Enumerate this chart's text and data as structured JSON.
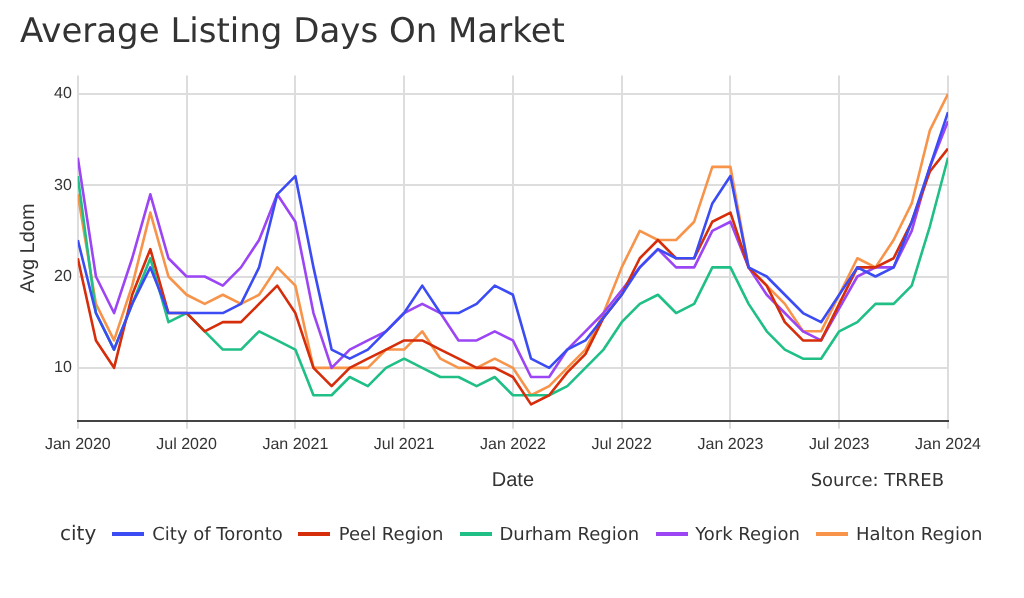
{
  "chart_data": {
    "type": "line",
    "title": "Average Listing Days On Market",
    "xlabel": "Date",
    "ylabel": "Avg Ldom",
    "legend_title": "city",
    "annotations": [
      "Source: TRREB"
    ],
    "x": [
      "2020-01",
      "2020-02",
      "2020-03",
      "2020-04",
      "2020-05",
      "2020-06",
      "2020-07",
      "2020-08",
      "2020-09",
      "2020-10",
      "2020-11",
      "2020-12",
      "2021-01",
      "2021-02",
      "2021-03",
      "2021-04",
      "2021-05",
      "2021-06",
      "2021-07",
      "2021-08",
      "2021-09",
      "2021-10",
      "2021-11",
      "2021-12",
      "2022-01",
      "2022-02",
      "2022-03",
      "2022-04",
      "2022-05",
      "2022-06",
      "2022-07",
      "2022-08",
      "2022-09",
      "2022-10",
      "2022-11",
      "2022-12",
      "2023-01",
      "2023-02",
      "2023-03",
      "2023-04",
      "2023-05",
      "2023-06",
      "2023-07",
      "2023-08",
      "2023-09",
      "2023-10",
      "2023-11",
      "2023-12",
      "2024-01"
    ],
    "series": [
      {
        "name": "City of Toronto",
        "color": "#3b4cf5",
        "values": [
          24,
          16,
          12,
          17,
          21,
          16,
          16,
          16,
          16,
          17,
          21,
          29,
          31,
          21,
          12,
          11,
          12,
          14,
          16,
          19,
          16,
          16,
          17,
          19,
          18,
          11,
          10,
          12,
          13,
          15.5,
          18,
          21,
          23,
          22,
          22,
          28,
          31,
          21,
          20,
          18,
          16,
          15,
          18,
          21,
          20,
          21,
          26,
          32,
          38
        ]
      },
      {
        "name": "Peel Region",
        "color": "#d62d0a",
        "values": [
          22,
          13,
          10,
          18,
          23,
          16,
          16,
          14,
          15,
          15,
          17,
          19,
          16,
          10,
          8,
          10,
          11,
          12,
          13,
          13,
          12,
          11,
          10,
          10,
          9,
          6,
          7,
          9.5,
          11.5,
          15.5,
          18,
          22,
          24,
          22,
          22,
          26,
          27,
          21,
          19,
          15,
          13,
          13,
          17,
          21,
          21,
          22,
          26,
          31.5,
          34
        ]
      },
      {
        "name": "Durham Region",
        "color": "#1fbf86",
        "values": [
          31,
          16,
          12,
          17,
          22,
          15,
          16,
          14,
          12,
          12,
          14,
          13,
          12,
          7,
          7,
          9,
          8,
          10,
          11,
          10,
          9,
          9,
          8,
          9,
          7,
          7,
          7,
          8,
          10,
          12,
          15,
          17,
          18,
          16,
          17,
          21,
          21,
          17,
          14,
          12,
          11,
          11,
          14,
          15,
          17,
          17,
          19,
          25.5,
          33
        ]
      },
      {
        "name": "York Region",
        "color": "#9b45f5",
        "values": [
          33,
          20,
          16,
          22,
          29,
          22,
          20,
          20,
          19,
          21,
          24,
          29,
          26,
          16,
          10,
          12,
          13,
          14,
          16,
          17,
          16,
          13,
          13,
          14,
          13,
          9,
          9,
          12,
          14,
          16,
          18.5,
          21,
          23,
          21,
          21,
          25,
          26,
          21,
          18,
          16,
          14,
          13,
          16.5,
          20,
          21,
          21,
          25,
          32,
          37
        ]
      },
      {
        "name": "Halton Region",
        "color": "#f7944a",
        "values": [
          29,
          17,
          13,
          19,
          27,
          20,
          18,
          17,
          18,
          17,
          18,
          21,
          19,
          10,
          10,
          10,
          10,
          12,
          12,
          14,
          11,
          10,
          10,
          11,
          10,
          7,
          8,
          10,
          12,
          16,
          21,
          25,
          24,
          24,
          26,
          32,
          32,
          21,
          19,
          17,
          14,
          14,
          18,
          22,
          21,
          24,
          28,
          36,
          40
        ]
      }
    ],
    "xlim": [
      "2020-01",
      "2024-01"
    ],
    "xticks": [
      {
        "value": "2020-01",
        "label": "Jan 2020"
      },
      {
        "value": "2020-07",
        "label": "Jul 2020"
      },
      {
        "value": "2021-01",
        "label": "Jan 2021"
      },
      {
        "value": "2021-07",
        "label": "Jul 2021"
      },
      {
        "value": "2022-01",
        "label": "Jan 2022"
      },
      {
        "value": "2022-07",
        "label": "Jul 2022"
      },
      {
        "value": "2023-01",
        "label": "Jan 2023"
      },
      {
        "value": "2023-07",
        "label": "Jul 2023"
      },
      {
        "value": "2024-01",
        "label": "Jan 2024"
      }
    ],
    "ylim": [
      4.2,
      42
    ],
    "yticks": [
      10,
      20,
      30,
      40
    ],
    "grid": true,
    "legend": "bottom",
    "marker": "none",
    "line_style": "solid"
  }
}
